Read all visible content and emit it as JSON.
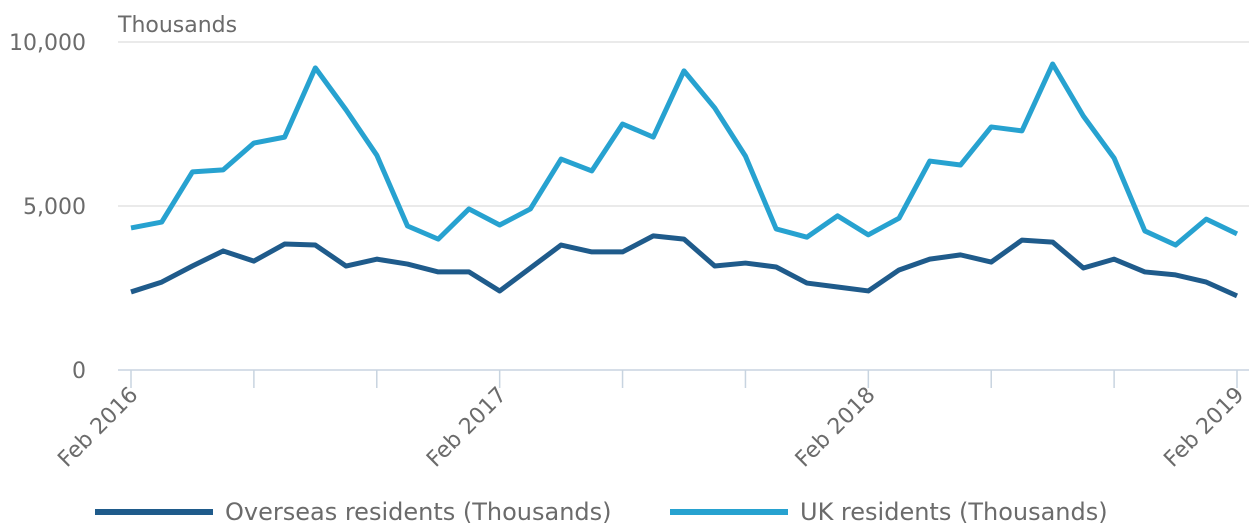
{
  "chart_data": {
    "type": "line",
    "y_label": "Thousands",
    "categories": [
      "Feb 2016",
      null,
      null,
      null,
      null,
      null,
      null,
      null,
      null,
      null,
      null,
      null,
      "Feb 2017",
      null,
      null,
      null,
      null,
      null,
      null,
      null,
      null,
      null,
      null,
      null,
      "Feb 2018",
      null,
      null,
      null,
      null,
      null,
      null,
      null,
      null,
      null,
      null,
      null,
      "Feb 2019"
    ],
    "series": [
      {
        "name": "Overseas residents (Thousands)",
        "color": "#1f5b8b",
        "values": [
          2380,
          2680,
          3170,
          3630,
          3320,
          3840,
          3810,
          3170,
          3380,
          3230,
          2990,
          2990,
          2410,
          3110,
          3810,
          3600,
          3600,
          4090,
          3990,
          3170,
          3260,
          3140,
          2650,
          2530,
          2410,
          3050,
          3380,
          3510,
          3290,
          3960,
          3900,
          3110,
          3380,
          2990,
          2900,
          2680,
          2260
        ]
      },
      {
        "name": "UK residents (Thousands)",
        "color": "#27a2d0",
        "values": [
          4330,
          4510,
          6040,
          6100,
          6920,
          7100,
          9210,
          7930,
          6550,
          4390,
          3990,
          4910,
          4420,
          4910,
          6430,
          6070,
          7500,
          7100,
          9120,
          7990,
          6520,
          4300,
          4050,
          4700,
          4120,
          4630,
          6370,
          6250,
          7410,
          7290,
          9330,
          7740,
          6460,
          4240,
          3810,
          4600,
          4150
        ]
      }
    ],
    "ylim": [
      0,
      10000
    ],
    "yticks": [
      0,
      {
        "value": 5000,
        "label": "5,000"
      },
      {
        "value": 10000,
        "label": "10,000"
      }
    ],
    "grid": true
  }
}
